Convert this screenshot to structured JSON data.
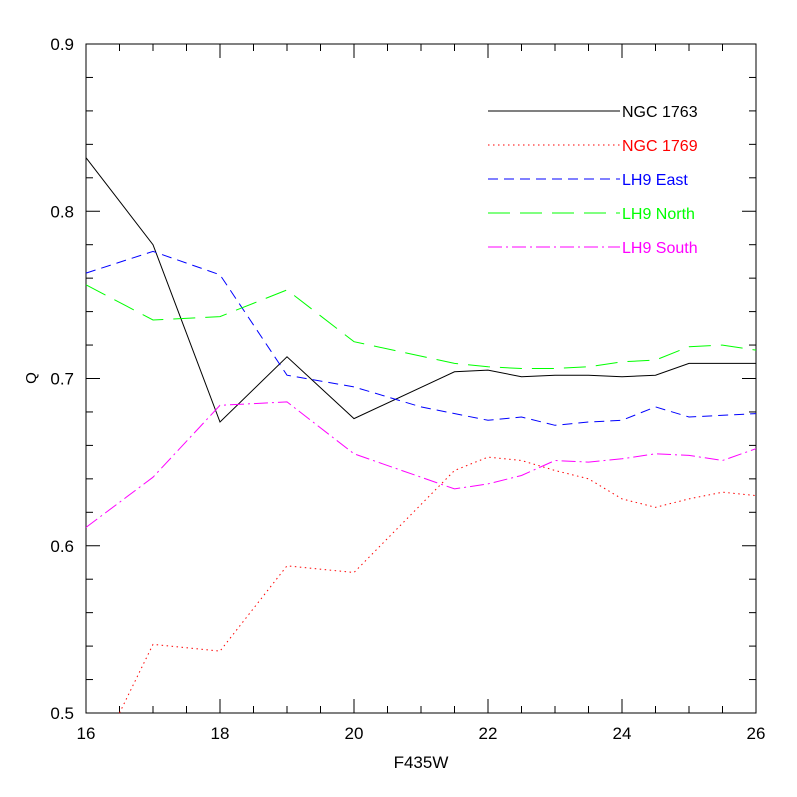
{
  "chart_data": {
    "type": "line",
    "xlabel": "F435W",
    "ylabel": "Q",
    "xlim": [
      16,
      26
    ],
    "ylim": [
      0.5,
      0.9
    ],
    "x_ticks": [
      16,
      18,
      20,
      22,
      24,
      26
    ],
    "x_tick_labels": [
      "16",
      "18",
      "20",
      "22",
      "24",
      "26"
    ],
    "y_ticks": [
      0.5,
      0.6,
      0.7,
      0.8,
      0.9
    ],
    "y_tick_labels": [
      "0.5",
      "0.6",
      "0.7",
      "0.8",
      "0.9"
    ],
    "grid": false,
    "legend_position": "top-right",
    "series": [
      {
        "name": "NGC 1763",
        "color": "#000000",
        "dash": "solid",
        "x": [
          16,
          17,
          18,
          19,
          20,
          21.5,
          22,
          22.5,
          23,
          23.5,
          24,
          24.5,
          25,
          26
        ],
        "y": [
          0.832,
          0.78,
          0.674,
          0.713,
          0.676,
          0.704,
          0.705,
          0.701,
          0.702,
          0.702,
          0.701,
          0.702,
          0.709,
          0.709
        ]
      },
      {
        "name": "NGC 1769",
        "color": "#ff0000",
        "dash": "dotted",
        "x": [
          16.5,
          17,
          18,
          19,
          20,
          21.5,
          22,
          22.5,
          23,
          23.5,
          24,
          24.5,
          25,
          25.5,
          26
        ],
        "y": [
          0.5,
          0.541,
          0.537,
          0.588,
          0.584,
          0.645,
          0.653,
          0.651,
          0.645,
          0.64,
          0.628,
          0.623,
          0.628,
          0.632,
          0.63
        ]
      },
      {
        "name": "LH9 East",
        "color": "#0000ff",
        "dash": "dashed",
        "x": [
          16,
          17,
          18,
          19,
          20,
          21,
          22,
          22.5,
          23,
          23.5,
          24,
          24.5,
          25,
          26
        ],
        "y": [
          0.763,
          0.776,
          0.762,
          0.702,
          0.695,
          0.683,
          0.675,
          0.677,
          0.672,
          0.674,
          0.675,
          0.683,
          0.677,
          0.679
        ]
      },
      {
        "name": "LH9 North",
        "color": "#00ff00",
        "dash": "long-dashed",
        "x": [
          16,
          17,
          18,
          19,
          20,
          21.5,
          22,
          22.5,
          23,
          23.5,
          24,
          24.5,
          25,
          25.5,
          26
        ],
        "y": [
          0.756,
          0.735,
          0.737,
          0.753,
          0.722,
          0.709,
          0.707,
          0.706,
          0.706,
          0.707,
          0.71,
          0.711,
          0.719,
          0.72,
          0.717
        ]
      },
      {
        "name": "LH9 South",
        "color": "#ff00ff",
        "dash": "dash-dot",
        "x": [
          16,
          17,
          18,
          19,
          20,
          21.5,
          22,
          22.5,
          23,
          23.5,
          24,
          24.5,
          25,
          25.5,
          26
        ],
        "y": [
          0.611,
          0.641,
          0.684,
          0.686,
          0.655,
          0.634,
          0.637,
          0.642,
          0.651,
          0.65,
          0.652,
          0.655,
          0.654,
          0.651,
          0.658
        ]
      }
    ]
  }
}
